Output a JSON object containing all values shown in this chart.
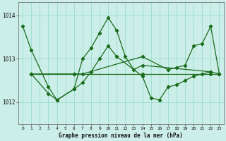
{
  "title": "Graphe pression niveau de la mer (hPa)",
  "bg_color": "#cceee8",
  "grid_color": "#99ddcc",
  "line_color": "#1a6b1a",
  "xlim": [
    -0.5,
    23.5
  ],
  "ylim": [
    1011.5,
    1014.3
  ],
  "yticks": [
    1012,
    1013,
    1014
  ],
  "xticks": [
    0,
    1,
    2,
    3,
    4,
    5,
    6,
    7,
    8,
    9,
    10,
    11,
    12,
    13,
    14,
    15,
    16,
    17,
    18,
    19,
    20,
    21,
    22,
    23
  ],
  "line1_x": [
    0,
    1,
    3,
    4,
    6,
    7,
    8,
    9,
    10,
    11,
    12,
    13,
    14,
    22
  ],
  "line1_y": [
    1013.75,
    1013.2,
    1012.35,
    1012.05,
    1012.3,
    1013.0,
    1013.25,
    1013.6,
    1013.95,
    1013.65,
    1013.05,
    1012.75,
    1012.85,
    1012.7
  ],
  "line2_x": [
    1,
    6,
    14,
    22,
    23
  ],
  "line2_y": [
    1012.65,
    1012.65,
    1012.65,
    1012.65,
    1012.65
  ],
  "line3_x": [
    1,
    3,
    4,
    6,
    7,
    8,
    9,
    10,
    11,
    14,
    15,
    16,
    17,
    18,
    19,
    20,
    21,
    22,
    23
  ],
  "line3_y": [
    1012.65,
    1012.2,
    1012.05,
    1012.3,
    1012.45,
    1012.7,
    1013.0,
    1013.3,
    1013.05,
    1012.6,
    1012.1,
    1012.05,
    1012.35,
    1012.4,
    1012.5,
    1012.6,
    1012.65,
    1012.7,
    1012.65
  ],
  "line4_x": [
    1,
    6,
    7,
    14,
    17,
    18,
    19,
    20,
    21,
    22,
    23
  ],
  "line4_y": [
    1012.65,
    1012.65,
    1012.65,
    1013.05,
    1012.75,
    1012.8,
    1012.85,
    1013.3,
    1013.35,
    1013.75,
    1012.65
  ]
}
